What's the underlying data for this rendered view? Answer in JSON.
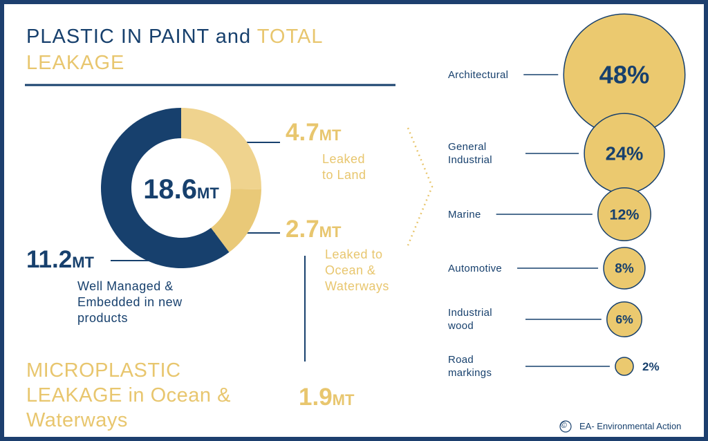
{
  "header": {
    "title_dark": "PLASTIC IN PAINT and",
    "title_light": "TOTAL LEAKAGE"
  },
  "chart_data": [
    {
      "type": "pie",
      "unit": "MT",
      "total": 18.6,
      "categories": [
        "Well Managed & Embedded in new products",
        "Leaked to Land",
        "Leaked to Ocean & Waterways"
      ],
      "values": [
        11.2,
        4.7,
        2.7
      ],
      "colors": [
        "#17406d",
        "#efd38e",
        "#e9c978"
      ]
    },
    {
      "type": "bubble",
      "categories": [
        "Architectural",
        "General Industrial",
        "Marine",
        "Automotive",
        "Industrial wood",
        "Road markings"
      ],
      "values": [
        48,
        24,
        12,
        8,
        6,
        2
      ],
      "value_labels": [
        "48%",
        "24%",
        "12%",
        "8%",
        "6%",
        "2%"
      ],
      "color": "#ebc96f"
    }
  ],
  "microplastic": {
    "title": "MICROPLASTIC LEAKAGE in Ocean & Waterways",
    "value": 1.9
  },
  "footer": {
    "mark": "©",
    "credit": "EA- Environmental Action"
  }
}
